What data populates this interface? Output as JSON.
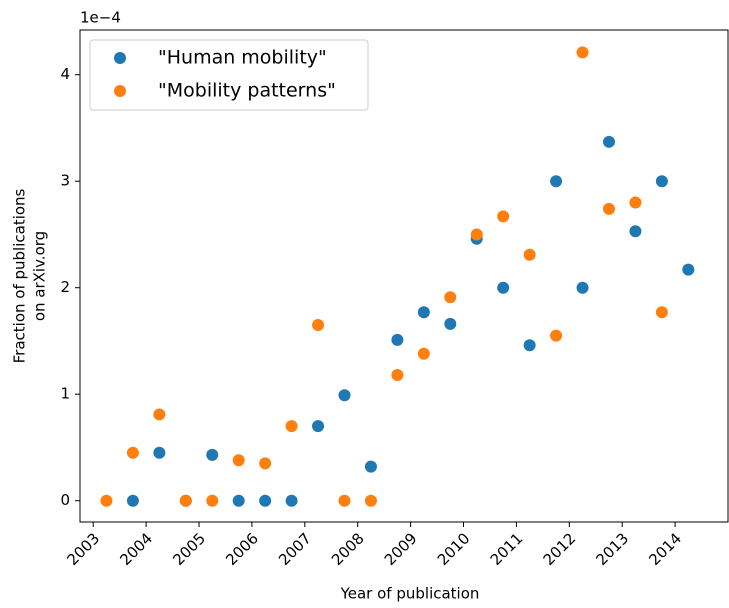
{
  "chart_data": {
    "type": "scatter",
    "x_label": "Year of publication",
    "y_label": [
      "Fraction of publications",
      "on arXiv.org"
    ],
    "y_offset_label": "1e−4",
    "xlim": [
      2002.75,
      2015.0
    ],
    "ylim": [
      -0.2,
      4.42
    ],
    "xticks": [
      2003,
      2004,
      2005,
      2006,
      2007,
      2008,
      2009,
      2010,
      2011,
      2012,
      2013,
      2014
    ],
    "yticks": [
      0,
      1,
      2,
      3,
      4
    ],
    "legend": "upper left",
    "series": [
      {
        "name": "\"Human mobility\"",
        "color": "#1f77b4",
        "x": [
          2003.75,
          2004.25,
          2004.75,
          2005.25,
          2005.75,
          2006.25,
          2006.75,
          2007.25,
          2007.75,
          2008.25,
          2008.75,
          2009.25,
          2009.75,
          2010.25,
          2010.75,
          2011.25,
          2011.75,
          2012.25,
          2012.75,
          2013.25,
          2013.75,
          2014.25
        ],
        "values": [
          0,
          0.45,
          0,
          0.43,
          0,
          0,
          0,
          0.7,
          0.99,
          0.32,
          1.51,
          1.77,
          1.66,
          2.46,
          2.0,
          1.46,
          3.0,
          2.0,
          3.37,
          2.53,
          3.0,
          2.17
        ]
      },
      {
        "name": "\"Mobility patterns\"",
        "color": "#ff7f0e",
        "x": [
          2003.25,
          2003.75,
          2004.25,
          2004.75,
          2005.25,
          2005.75,
          2006.25,
          2006.75,
          2007.25,
          2007.75,
          2008.25,
          2008.75,
          2009.25,
          2009.75,
          2010.25,
          2010.75,
          2011.25,
          2011.75,
          2012.25,
          2012.75,
          2013.25,
          2013.75
        ],
        "values": [
          0,
          0.45,
          0.81,
          0,
          0,
          0.38,
          0.35,
          0.7,
          1.65,
          0,
          0,
          1.18,
          1.38,
          1.91,
          2.5,
          2.67,
          2.31,
          1.55,
          4.21,
          2.74,
          2.8,
          1.77
        ]
      }
    ]
  }
}
